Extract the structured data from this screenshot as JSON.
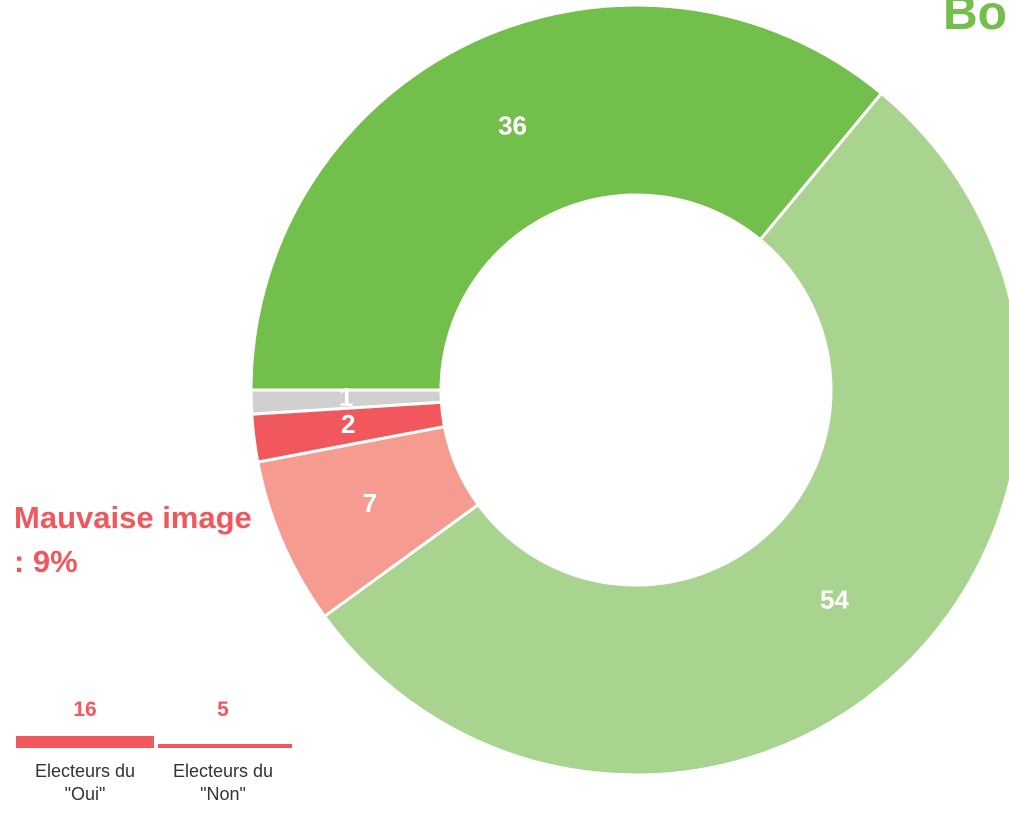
{
  "chart_data": [
    {
      "type": "donut",
      "title": "Bo",
      "annotation": "Mauvaise image : 9%",
      "values": [
        36,
        54,
        7,
        2,
        1
      ],
      "colors": [
        "#72bf4b",
        "#a9d48f",
        "#f59b90",
        "#f0585e",
        "#d0d0d0"
      ],
      "title_color": "#72bf4b",
      "annotation_color": "#f0585e"
    },
    {
      "type": "bar",
      "categories": [
        "Electeurs du \"Oui\"",
        "Electeurs du \"Non\""
      ],
      "values": [
        16,
        5
      ],
      "color": "#f0585e"
    }
  ]
}
